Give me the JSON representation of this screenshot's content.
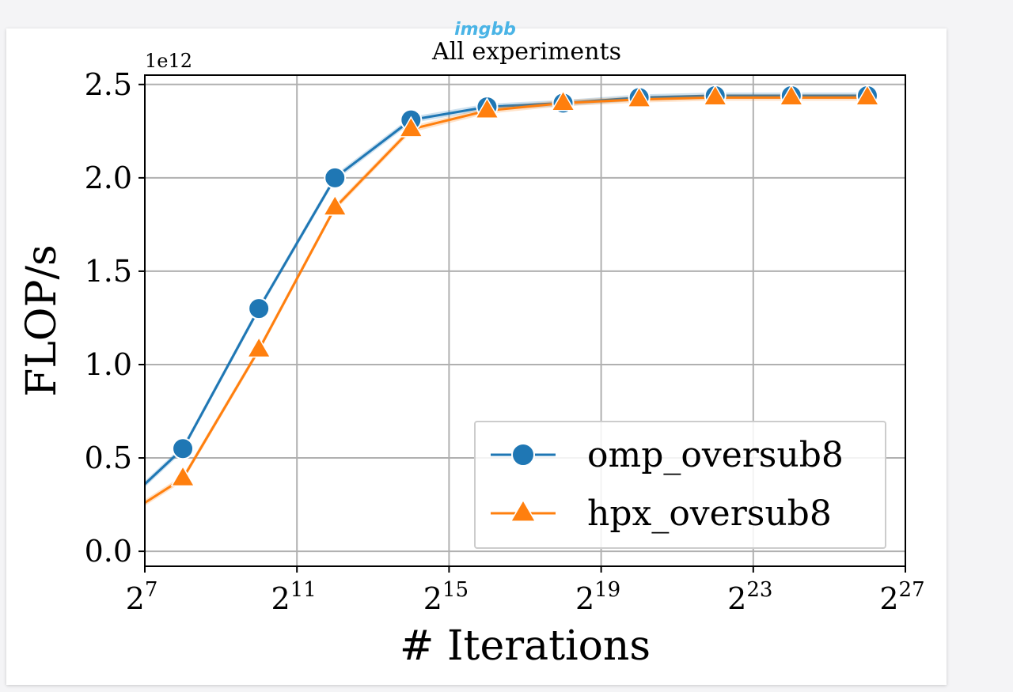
{
  "watermark": "imgbb",
  "chart_data": {
    "type": "line",
    "title": "All experiments",
    "offset_label": "1e12",
    "xlabel": "# Iterations",
    "ylabel": "FLOP/s",
    "x_scale": "log2",
    "xlim_exponent": [
      7,
      27
    ],
    "ylim": [
      -0.08,
      2.55
    ],
    "x_ticks": [
      {
        "base": "2",
        "exp": "7",
        "value_exp": 7
      },
      {
        "base": "2",
        "exp": "11",
        "value_exp": 11
      },
      {
        "base": "2",
        "exp": "15",
        "value_exp": 15
      },
      {
        "base": "2",
        "exp": "19",
        "value_exp": 19
      },
      {
        "base": "2",
        "exp": "23",
        "value_exp": 23
      },
      {
        "base": "2",
        "exp": "27",
        "value_exp": 27
      }
    ],
    "y_ticks": [
      {
        "label": "0.0",
        "value": 0.0
      },
      {
        "label": "0.5",
        "value": 0.5
      },
      {
        "label": "1.0",
        "value": 1.0
      },
      {
        "label": "1.5",
        "value": 1.5
      },
      {
        "label": "2.0",
        "value": 2.0
      },
      {
        "label": "2.5",
        "value": 2.5
      }
    ],
    "grid": true,
    "legend_position": "lower-right",
    "series": [
      {
        "name": "omp_oversub8",
        "color": "#1f77b4",
        "marker": "circle",
        "x_exp": [
          7,
          8,
          10,
          12,
          14,
          16,
          18,
          20,
          22,
          24,
          26
        ],
        "y": [
          0.36,
          0.55,
          1.3,
          2.0,
          2.31,
          2.38,
          2.4,
          2.43,
          2.44,
          2.44,
          2.44
        ],
        "markers_from_index": 1
      },
      {
        "name": "hpx_oversub8",
        "color": "#ff7f0e",
        "marker": "triangle",
        "x_exp": [
          7,
          8,
          10,
          12,
          14,
          16,
          18,
          20,
          22,
          24,
          26
        ],
        "y": [
          0.26,
          0.39,
          1.08,
          1.84,
          2.26,
          2.36,
          2.4,
          2.42,
          2.43,
          2.43,
          2.43
        ],
        "markers_from_index": 1
      }
    ]
  }
}
